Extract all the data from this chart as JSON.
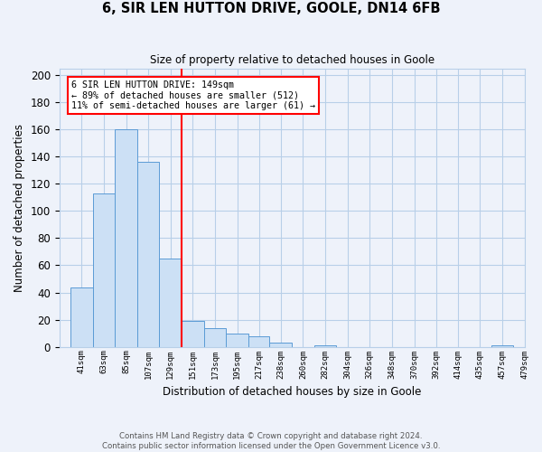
{
  "title1": "6, SIR LEN HUTTON DRIVE, GOOLE, DN14 6FB",
  "title2": "Size of property relative to detached houses in Goole",
  "xlabel": "Distribution of detached houses by size in Goole",
  "ylabel": "Number of detached properties",
  "footnote": "Contains HM Land Registry data © Crown copyright and database right 2024.\nContains public sector information licensed under the Open Government Licence v3.0.",
  "bar_edges": [
    41,
    63,
    85,
    107,
    129,
    151,
    173,
    195,
    217,
    238,
    260,
    282,
    304,
    326,
    348,
    370,
    392,
    414,
    435,
    457,
    479
  ],
  "bar_heights": [
    44,
    113,
    160,
    136,
    65,
    19,
    14,
    10,
    8,
    3,
    0,
    1,
    0,
    0,
    0,
    0,
    0,
    0,
    0,
    1
  ],
  "bar_color": "#cce0f5",
  "bar_edge_color": "#5b9bd5",
  "red_line_x": 151,
  "annotation_lines": [
    "6 SIR LEN HUTTON DRIVE: 149sqm",
    "← 89% of detached houses are smaller (512)",
    "11% of semi-detached houses are larger (61) →"
  ],
  "annotation_box_color": "white",
  "annotation_box_edge_color": "red",
  "ylim": [
    0,
    205
  ],
  "yticks": [
    0,
    20,
    40,
    60,
    80,
    100,
    120,
    140,
    160,
    180,
    200
  ],
  "grid_color": "#b8cfe8",
  "background_color": "#eef2fa"
}
